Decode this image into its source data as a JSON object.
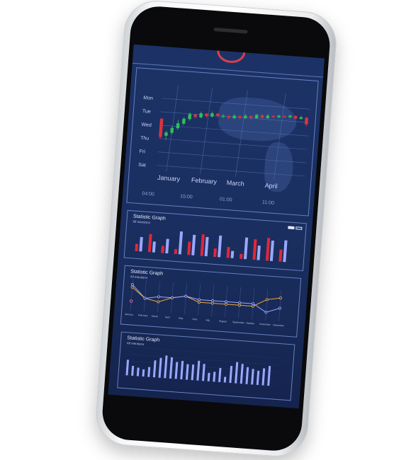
{
  "candlestick": {
    "days": [
      "Mon",
      "Tue",
      "Wed",
      "Thu",
      "Fri",
      "Sat"
    ],
    "months": [
      "January",
      "February",
      "March",
      "April"
    ],
    "times": [
      "04:00",
      "15:00",
      "01:00",
      "11:00"
    ],
    "colors": {
      "up": "#2fbf5a",
      "down": "#e0323a",
      "grid": "#5e78b6"
    },
    "candles": [
      {
        "o": 2.6,
        "c": 0.4,
        "h": 2.7,
        "l": 0.2
      },
      {
        "o": 0.6,
        "c": 1.0,
        "h": 1.2,
        "l": 0.1
      },
      {
        "o": 1.0,
        "c": 1.6,
        "h": 1.8,
        "l": 0.8
      },
      {
        "o": 1.6,
        "c": 2.2,
        "h": 2.6,
        "l": 1.4
      },
      {
        "o": 2.2,
        "c": 2.8,
        "h": 3.0,
        "l": 2.0
      },
      {
        "o": 2.8,
        "c": 3.4,
        "h": 3.6,
        "l": 2.6
      },
      {
        "o": 3.4,
        "c": 3.1,
        "h": 3.5,
        "l": 2.9
      },
      {
        "o": 3.1,
        "c": 3.6,
        "h": 3.8,
        "l": 3.0
      },
      {
        "o": 3.6,
        "c": 3.3,
        "h": 3.7,
        "l": 3.1
      },
      {
        "o": 3.3,
        "c": 3.7,
        "h": 3.9,
        "l": 3.2
      },
      {
        "o": 3.7,
        "c": 3.4,
        "h": 3.8,
        "l": 3.2
      },
      {
        "o": 3.4,
        "c": 3.5,
        "h": 3.7,
        "l": 3.2
      },
      {
        "o": 3.5,
        "c": 3.3,
        "h": 3.6,
        "l": 3.1
      },
      {
        "o": 3.3,
        "c": 3.6,
        "h": 3.8,
        "l": 3.2
      },
      {
        "o": 3.6,
        "c": 3.4,
        "h": 3.7,
        "l": 3.2
      },
      {
        "o": 3.4,
        "c": 3.7,
        "h": 3.9,
        "l": 3.3
      },
      {
        "o": 3.7,
        "c": 3.5,
        "h": 3.8,
        "l": 3.3
      },
      {
        "o": 3.5,
        "c": 3.9,
        "h": 4.0,
        "l": 3.4
      },
      {
        "o": 3.9,
        "c": 3.6,
        "h": 4.0,
        "l": 3.5
      },
      {
        "o": 3.6,
        "c": 3.9,
        "h": 4.1,
        "l": 3.5
      },
      {
        "o": 3.9,
        "c": 3.8,
        "h": 4.0,
        "l": 3.7
      },
      {
        "o": 3.8,
        "c": 4.0,
        "h": 4.1,
        "l": 3.7
      },
      {
        "o": 4.0,
        "c": 3.9,
        "h": 4.1,
        "l": 3.8
      },
      {
        "o": 3.9,
        "c": 4.1,
        "h": 4.2,
        "l": 3.8
      },
      {
        "o": 4.1,
        "c": 3.8,
        "h": 4.2,
        "l": 3.7
      },
      {
        "o": 3.8,
        "c": 4.0,
        "h": 4.2,
        "l": 3.7
      },
      {
        "o": 4.0,
        "c": 3.2,
        "h": 4.1,
        "l": 2.9
      }
    ]
  },
  "bar_panel": {
    "title": "Statistic Graph",
    "subtitle": "All mentions",
    "colors": {
      "a": "#e0283a",
      "b": "#9aa8ff"
    },
    "pairs": [
      [
        0.3,
        0.6
      ],
      [
        0.75,
        0.45
      ],
      [
        0.3,
        0.6
      ],
      [
        0.2,
        0.95
      ],
      [
        0.55,
        0.85
      ],
      [
        0.9,
        0.8
      ],
      [
        0.35,
        0.9
      ],
      [
        0.45,
        0.3
      ],
      [
        0.2,
        0.9
      ],
      [
        0.85,
        0.6
      ],
      [
        0.95,
        0.85
      ],
      [
        0.5,
        0.9
      ]
    ]
  },
  "line_panel": {
    "title": "Statistic Graph",
    "subtitle": "All mentions",
    "colors": {
      "a": "#f0a83a",
      "b": "#9aa8ff",
      "c": "#e46ab0"
    },
    "x": [
      "January",
      "February",
      "March",
      "April",
      "May",
      "June",
      "July",
      "August",
      "September",
      "October",
      "November",
      "December"
    ],
    "series_a": [
      0.8,
      0.4,
      0.3,
      0.5,
      0.6,
      0.4,
      0.4,
      0.4,
      0.4,
      0.4,
      0.7,
      0.8
    ],
    "series_b": [
      0.9,
      0.4,
      0.5,
      0.5,
      0.6,
      0.5,
      0.5,
      0.5,
      0.5,
      0.5,
      0.2,
      0.4
    ]
  },
  "column_panel": {
    "title": "Statistic Graph",
    "subtitle": "All mentions",
    "color": "#9aa8ff",
    "values": [
      0.55,
      0.35,
      0.3,
      0.25,
      0.35,
      0.6,
      0.7,
      0.8,
      0.75,
      0.6,
      0.65,
      0.55,
      0.55,
      0.7,
      0.6,
      0.3,
      0.35,
      0.5,
      0.2,
      0.6,
      0.75,
      0.7,
      0.6,
      0.55,
      0.5,
      0.6,
      0.7
    ]
  }
}
